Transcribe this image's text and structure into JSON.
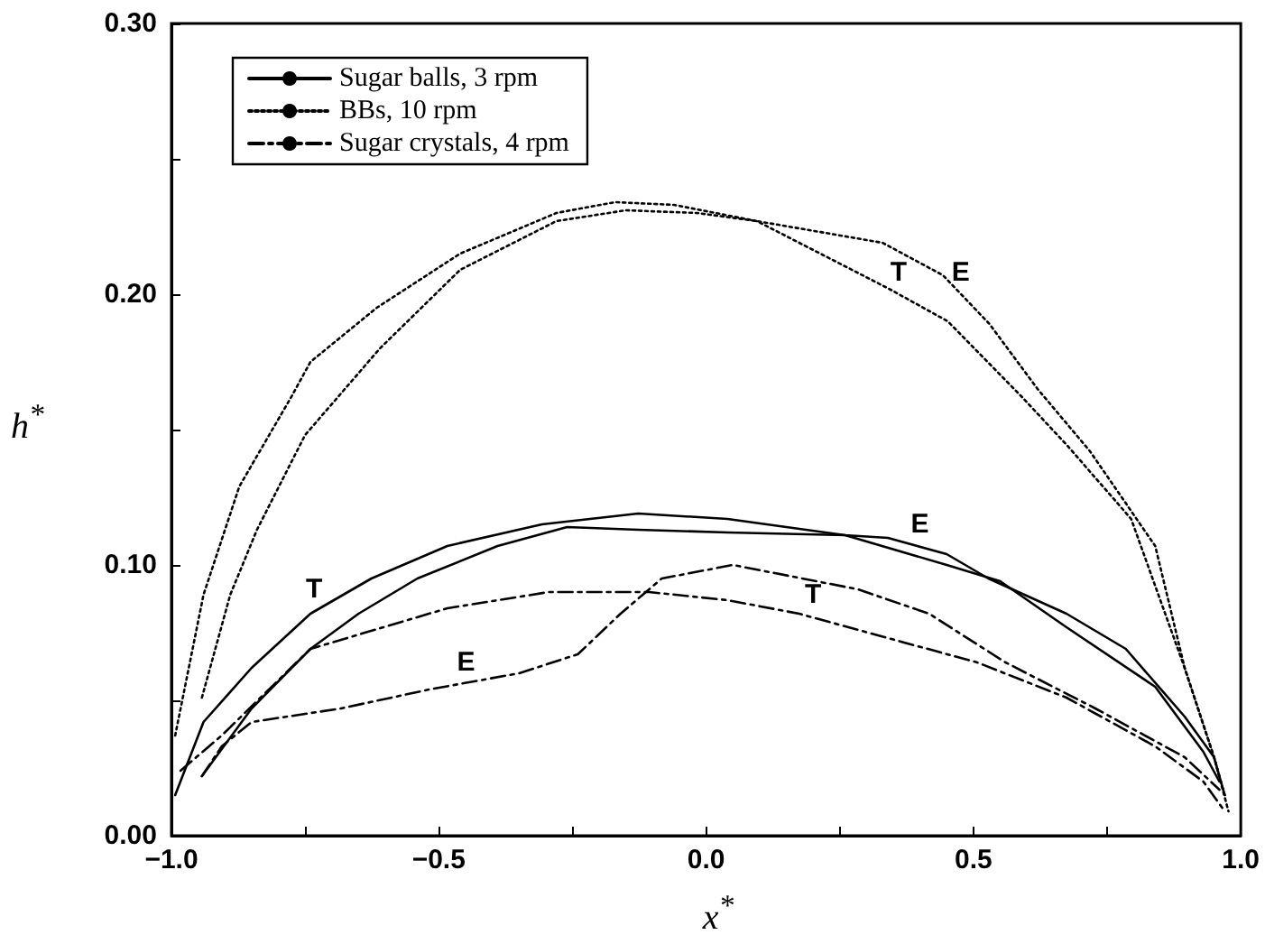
{
  "chart_data": {
    "type": "line",
    "xlabel": "x$^{*}$",
    "ylabel": "h$^{*}$",
    "xlim": [
      -1,
      1
    ],
    "xticks": [
      {
        "value": -1,
        "label": "−1.0"
      },
      {
        "value": -0.75,
        "label": null
      },
      {
        "value": -0.5,
        "label": "−0.5"
      },
      {
        "value": -0.25,
        "label": null
      },
      {
        "value": 0,
        "label": "0.0"
      },
      {
        "value": 0.25,
        "label": null
      },
      {
        "value": 0.5,
        "label": "0.5"
      },
      {
        "value": 0.75,
        "label": null
      },
      {
        "value": 1,
        "label": "1.0"
      }
    ],
    "ylim": [
      0,
      0.3
    ],
    "yticks": [
      {
        "value": 0,
        "label": "0.00"
      },
      {
        "value": 0.05,
        "label": null
      },
      {
        "value": 0.1,
        "label": "0.10"
      },
      {
        "value": 0.15,
        "label": null
      },
      {
        "value": 0.2,
        "label": "0.20"
      },
      {
        "value": 0.25,
        "label": null
      },
      {
        "value": 0.3,
        "label": "0.30"
      }
    ],
    "grid": false,
    "legend": "top left",
    "marker": "none",
    "series": [
      {
        "name": "Sugar balls, 3 rpm",
        "color": "#000000",
        "line_style": "solid",
        "x": [
          -0.993,
          -0.94,
          -0.85,
          -0.74,
          -0.626,
          -0.484,
          -0.307,
          -0.127,
          0.04,
          0.26,
          0.34,
          0.45,
          0.528,
          0.674,
          0.785,
          0.895,
          0.95,
          0.97
        ],
        "values": [
          0.015,
          0.042,
          0.062,
          0.082,
          0.095,
          0.107,
          0.115,
          0.119,
          0.117,
          0.111,
          0.11,
          0.104,
          0.095,
          0.082,
          0.069,
          0.044,
          0.029,
          0.015
        ]
      },
      {
        "color": "#000000",
        "line_style": "solid",
        "x": [
          -0.943,
          -0.85,
          -0.74,
          -0.65,
          -0.54,
          -0.39,
          -0.26,
          -0.127,
          0.04,
          0.26,
          0.45,
          0.55,
          0.674,
          0.84,
          0.93,
          0.96
        ],
        "values": [
          0.022,
          0.047,
          0.069,
          0.082,
          0.095,
          0.107,
          0.114,
          0.113,
          0.112,
          0.111,
          0.1,
          0.094,
          0.077,
          0.055,
          0.031,
          0.02
        ]
      },
      {
        "name": "BBs, 10 rpm",
        "color": "#000000",
        "line_style": "dotted",
        "x": [
          -0.993,
          -0.94,
          -0.873,
          -0.776,
          -0.74,
          -0.616,
          -0.46,
          -0.28,
          -0.17,
          -0.06,
          0.095,
          0.342,
          0.452,
          0.591,
          0.676,
          0.795,
          0.895,
          0.95,
          0.977
        ],
        "values": [
          0.037,
          0.089,
          0.129,
          0.162,
          0.175,
          0.195,
          0.215,
          0.23,
          0.234,
          0.233,
          0.227,
          0.202,
          0.19,
          0.162,
          0.144,
          0.117,
          0.062,
          0.029,
          0.009
        ]
      },
      {
        "color": "#000000",
        "line_style": "dotted",
        "x": [
          -0.943,
          -0.89,
          -0.84,
          -0.75,
          -0.61,
          -0.46,
          -0.28,
          -0.15,
          -0.017,
          0.095,
          0.33,
          0.443,
          0.53,
          0.62,
          0.718,
          0.84,
          0.895,
          0.95,
          0.97
        ],
        "values": [
          0.051,
          0.089,
          0.113,
          0.148,
          0.18,
          0.209,
          0.227,
          0.231,
          0.23,
          0.227,
          0.219,
          0.207,
          0.189,
          0.165,
          0.142,
          0.107,
          0.062,
          0.029,
          0.015
        ]
      },
      {
        "name": "Sugar crystals, 4 rpm",
        "color": "#000000",
        "line_style": "dashed",
        "x": [
          -0.983,
          -0.906,
          -0.74,
          -0.484,
          -0.294,
          -0.107,
          0.04,
          0.174,
          0.34,
          0.507,
          0.674,
          0.84,
          0.93,
          0.97
        ],
        "values": [
          0.024,
          0.037,
          0.069,
          0.084,
          0.09,
          0.09,
          0.087,
          0.082,
          0.073,
          0.064,
          0.051,
          0.033,
          0.02,
          0.009
        ]
      },
      {
        "color": "#000000",
        "line_style": "dashed",
        "x": [
          -0.943,
          -0.906,
          -0.85,
          -0.683,
          -0.518,
          -0.35,
          -0.24,
          -0.16,
          -0.083,
          0.05,
          0.284,
          0.417,
          0.56,
          0.728,
          0.895,
          0.96
        ],
        "values": [
          0.022,
          0.033,
          0.042,
          0.047,
          0.054,
          0.06,
          0.067,
          0.082,
          0.095,
          0.1,
          0.091,
          0.082,
          0.064,
          0.047,
          0.029,
          0.017
        ]
      }
    ],
    "annotations": [
      {
        "text": "E",
        "x": 0.476,
        "y": 0.2
      },
      {
        "text": "T",
        "x": 0.36,
        "y": 0.2
      },
      {
        "text": "T",
        "x": -0.733,
        "y": 0.083
      },
      {
        "text": "E",
        "x": 0.4,
        "y": 0.107
      },
      {
        "text": "T",
        "x": 0.2,
        "y": 0.081
      },
      {
        "text": "E",
        "x": -0.449,
        "y": 0.056
      }
    ]
  }
}
